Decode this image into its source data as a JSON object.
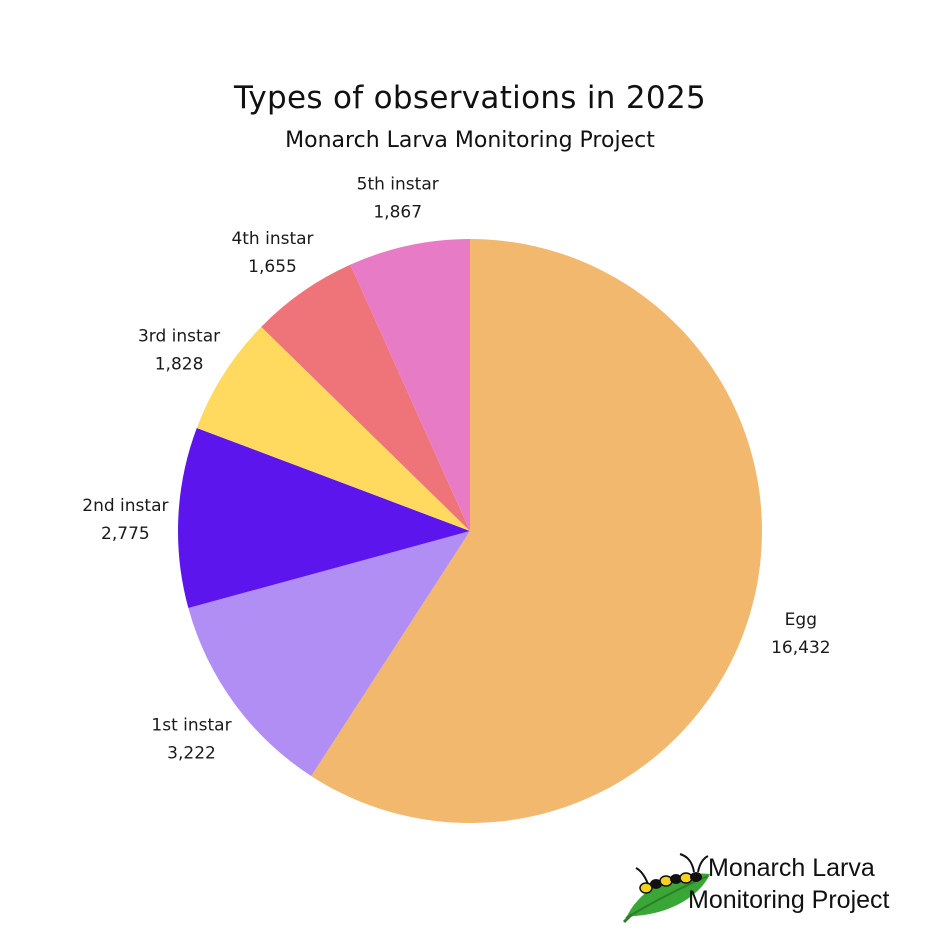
{
  "chart_data": {
    "type": "pie",
    "title": "Types of observations in 2025",
    "subtitle": "Monarch Larva Monitoring Project",
    "slices": [
      {
        "label": "Egg",
        "value": 16432,
        "value_label": "16,432",
        "color": "#F2B86E"
      },
      {
        "label": "1st instar",
        "value": 3222,
        "value_label": "3,222",
        "color": "#B08EF4"
      },
      {
        "label": "2nd instar",
        "value": 2775,
        "value_label": "2,775",
        "color": "#5D15EE"
      },
      {
        "label": "3rd instar",
        "value": 1828,
        "value_label": "1,828",
        "color": "#FFDA5E"
      },
      {
        "label": "4th instar",
        "value": 1655,
        "value_label": "1,655",
        "color": "#EE747A"
      },
      {
        "label": "5th instar",
        "value": 1867,
        "value_label": "1,867",
        "color": "#E87BC6"
      }
    ],
    "start": "top",
    "direction": "clockwise"
  },
  "logo": {
    "line1": "Monarch Larva",
    "line2": "Monitoring Project",
    "icon": "caterpillar-on-leaf-icon",
    "leaf_color": "#3AA635",
    "caterpillar_colors": [
      "#F5D21E",
      "#111111",
      "#FFFFFF"
    ]
  }
}
